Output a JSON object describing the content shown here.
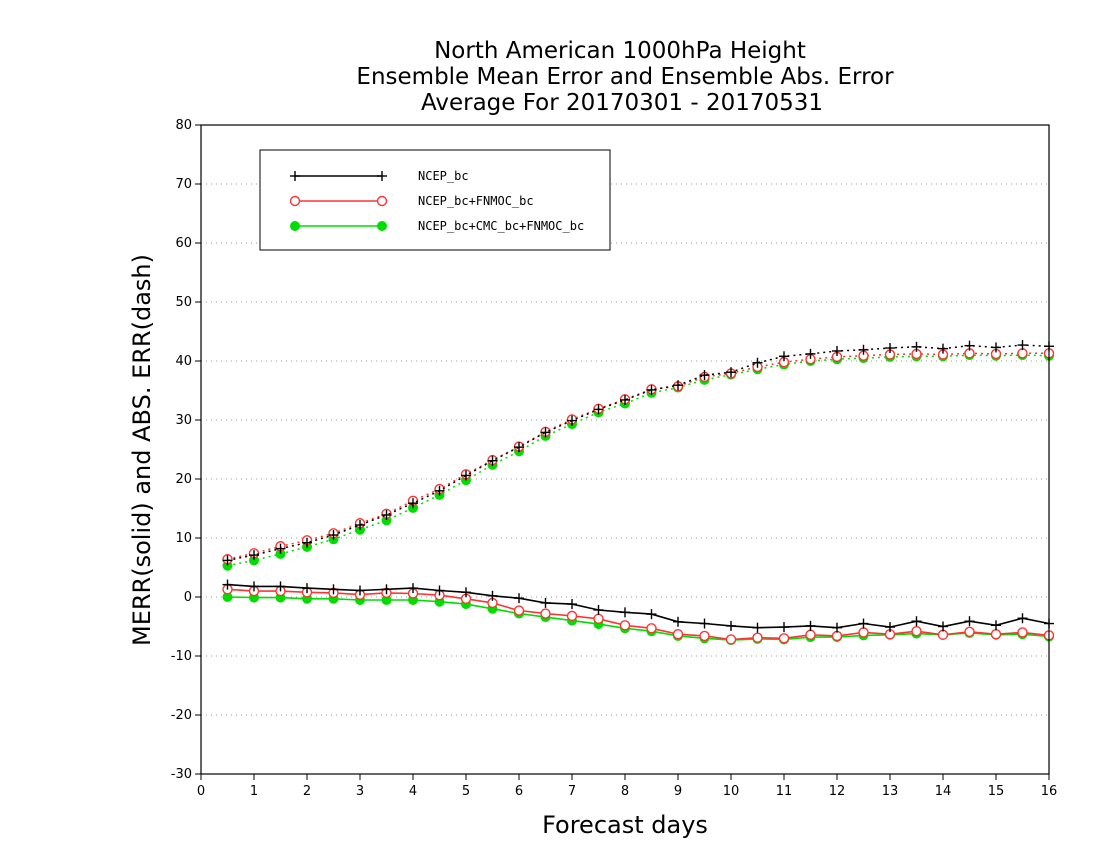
{
  "chart_data": {
    "type": "line",
    "title": [
      "North American 1000hPa Height",
      "Ensemble Mean Error and Ensemble Abs. Error",
      "Average For 20170301 - 20170531"
    ],
    "xlabel": "Forecast days",
    "ylabel": "MERR(solid) and ABS. ERR(dash)",
    "xlim": [
      0,
      16
    ],
    "ylim": [
      -30,
      80
    ],
    "xticks": [
      "0",
      "1",
      "2",
      "3",
      "4",
      "5",
      "6",
      "7",
      "8",
      "9",
      "10",
      "11",
      "12",
      "13",
      "14",
      "15",
      "16"
    ],
    "yticks": [
      "-30",
      "-20",
      "-10",
      "0",
      "10",
      "20",
      "30",
      "40",
      "50",
      "60",
      "70",
      "80"
    ],
    "grid": true,
    "legend_position": "top-left",
    "x": [
      0.5,
      1,
      1.5,
      2,
      2.5,
      3,
      3.5,
      4,
      4.5,
      5,
      5.5,
      6,
      6.5,
      7,
      7.5,
      8,
      8.5,
      9,
      9.5,
      10,
      10.5,
      11,
      11.5,
      12,
      12.5,
      13,
      13.5,
      14,
      14.5,
      15,
      15.5,
      16
    ],
    "series": [
      {
        "name": "NCEP_bc",
        "color": "#000000",
        "marker": "plus",
        "merr": [
          2.1,
          1.8,
          1.8,
          1.5,
          1.3,
          1.1,
          1.3,
          1.5,
          1.1,
          0.8,
          0.2,
          -0.2,
          -1.0,
          -1.2,
          -2.2,
          -2.6,
          -2.9,
          -4.2,
          -4.5,
          -4.9,
          -5.2,
          -5.1,
          -4.9,
          -5.2,
          -4.5,
          -5.1,
          -4.1,
          -5.0,
          -4.1,
          -4.8,
          -3.6,
          -4.5
        ],
        "abs_err": [
          6.2,
          7.1,
          8.2,
          9.2,
          10.5,
          12.2,
          13.9,
          15.9,
          18.0,
          20.6,
          23.1,
          25.4,
          27.9,
          29.9,
          31.8,
          33.4,
          35.1,
          35.9,
          37.6,
          38.1,
          39.7,
          40.8,
          41.2,
          41.7,
          41.9,
          42.2,
          42.4,
          42.1,
          42.6,
          42.3,
          42.7,
          42.5
        ]
      },
      {
        "name": "NCEP_bc+FNMOC_bc",
        "color": "#ff3333",
        "marker": "open-circle",
        "merr": [
          1.3,
          1.0,
          1.0,
          0.8,
          0.7,
          0.4,
          0.7,
          0.6,
          0.3,
          -0.3,
          -1.0,
          -2.3,
          -2.8,
          -3.2,
          -3.7,
          -4.8,
          -5.3,
          -6.3,
          -6.6,
          -7.2,
          -6.9,
          -7.0,
          -6.4,
          -6.6,
          -6.0,
          -6.3,
          -5.8,
          -6.4,
          -5.9,
          -6.3,
          -6.0,
          -6.5
        ],
        "abs_err": [
          6.4,
          7.4,
          8.6,
          9.6,
          10.8,
          12.5,
          14.1,
          16.3,
          18.3,
          20.8,
          23.2,
          25.5,
          28.0,
          30.1,
          31.9,
          33.5,
          35.2,
          35.7,
          37.3,
          37.9,
          39.0,
          39.8,
          40.3,
          40.7,
          40.9,
          41.1,
          41.2,
          41.1,
          41.3,
          41.2,
          41.3,
          41.3
        ]
      },
      {
        "name": "NCEP_bc+CMC_bc+FNMOC_bc",
        "color": "#00dd00",
        "marker": "filled-circle",
        "merr": [
          0.0,
          -0.1,
          -0.1,
          -0.3,
          -0.3,
          -0.5,
          -0.5,
          -0.5,
          -0.8,
          -1.2,
          -2.0,
          -2.8,
          -3.4,
          -4.0,
          -4.6,
          -5.3,
          -5.8,
          -6.6,
          -7.0,
          -7.3,
          -7.1,
          -7.2,
          -6.8,
          -6.8,
          -6.5,
          -6.4,
          -6.2,
          -6.4,
          -6.1,
          -6.4,
          -6.3,
          -6.7
        ],
        "abs_err": [
          5.3,
          6.2,
          7.3,
          8.5,
          9.8,
          11.4,
          13.0,
          15.1,
          17.3,
          19.8,
          22.4,
          24.7,
          27.3,
          29.3,
          31.3,
          32.8,
          34.6,
          35.5,
          36.8,
          37.7,
          38.6,
          39.4,
          40.0,
          40.3,
          40.5,
          40.7,
          40.8,
          40.8,
          41.0,
          40.9,
          41.0,
          40.9
        ]
      }
    ]
  }
}
